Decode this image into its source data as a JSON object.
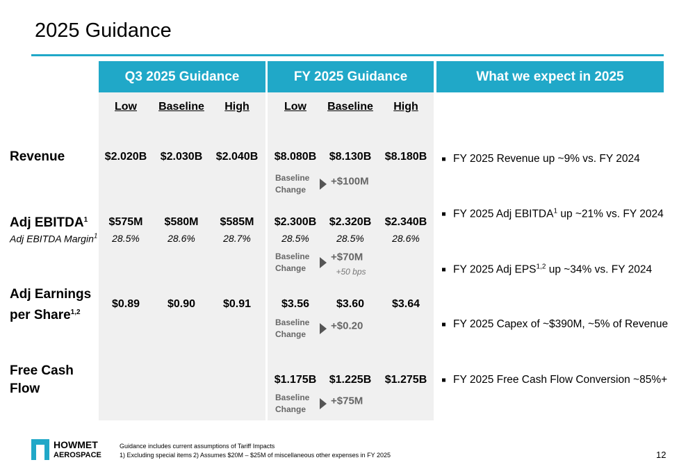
{
  "header": {
    "title": "2025 Guidance"
  },
  "columns": {
    "q3": "Q3 2025 Guidance",
    "fy": "FY 2025 Guidance",
    "expect": "What we expect in 2025"
  },
  "subheaders": [
    "Low",
    "Baseline",
    "High"
  ],
  "change_label": "Baseline Change",
  "rows": [
    {
      "label": "Revenue",
      "q3": [
        "$2.020B",
        "$2.030B",
        "$2.040B"
      ],
      "fy": [
        "$8.080B",
        "$8.130B",
        "$8.180B"
      ],
      "change": "+$100M"
    },
    {
      "label": "Adj EBITDA",
      "label_sup": "1",
      "sublabel": "Adj EBITDA Margin",
      "sublabel_sup": "1",
      "q3": [
        "$575M",
        "$580M",
        "$585M"
      ],
      "q3_margin": [
        "28.5%",
        "28.6%",
        "28.7%"
      ],
      "fy": [
        "$2.300B",
        "$2.320B",
        "$2.340B"
      ],
      "fy_margin": [
        "28.5%",
        "28.5%",
        "28.6%"
      ],
      "change": "+$70M",
      "change_note": "+50 bps"
    },
    {
      "label": "Adj Earnings per Share",
      "label_sup": "1,2",
      "q3": [
        "$0.89",
        "$0.90",
        "$0.91"
      ],
      "fy": [
        "$3.56",
        "$3.60",
        "$3.64"
      ],
      "change": "+$0.20"
    },
    {
      "label": "Free Cash Flow",
      "fy": [
        "$1.175B",
        "$1.225B",
        "$1.275B"
      ],
      "change": "+$75M"
    }
  ],
  "expectations": [
    {
      "text": "FY 2025 Revenue up ~9% vs. FY 2024"
    },
    {
      "text": "FY 2025 Adj EBITDA",
      "sup": "1",
      "after": " up ~21% vs. FY 2024"
    },
    {
      "text": "FY 2025 Adj EPS",
      "sup": "1,2",
      "after": " up ~34% vs. FY 2024"
    },
    {
      "text": "FY 2025 Capex of ~$390M, ~5% of Revenue"
    },
    {
      "text": "FY 2025 Free Cash Flow Conversion ~85%+"
    }
  ],
  "footer": {
    "logo_top": "HOWMET",
    "logo_bottom": "AEROSPACE",
    "note": "Guidance includes current assumptions of Tariff Impacts",
    "footnote_1": "1) Excluding special items",
    "footnote_2": "2) Assumes $20M – $25M of miscellaneous other expenses in FY 2025",
    "page": "12"
  }
}
